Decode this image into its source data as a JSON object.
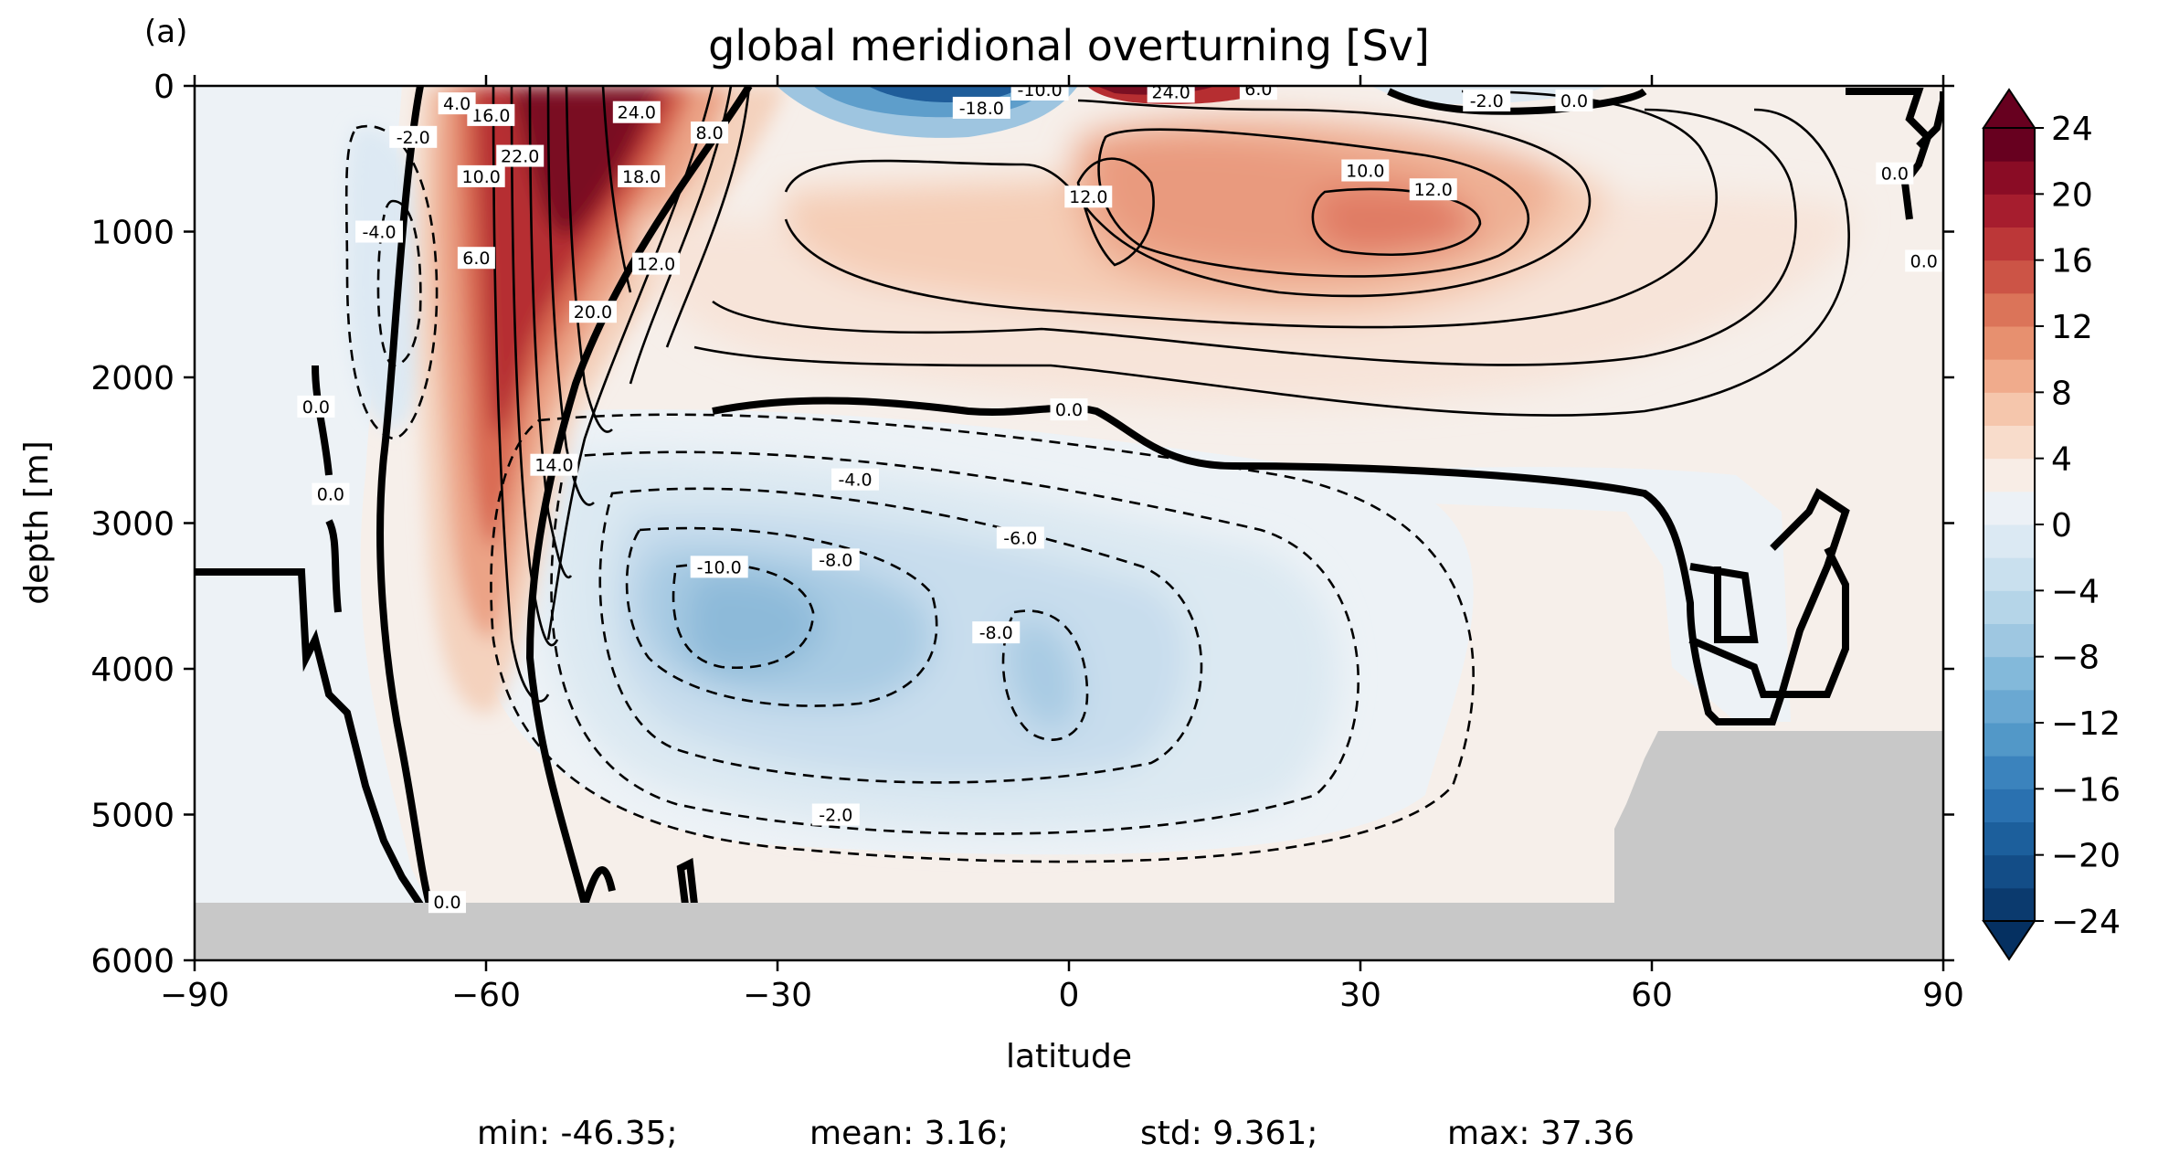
{
  "panel_label": "(a)",
  "chart_data": {
    "type": "heatmap",
    "title": "global meridional overturning [Sv]",
    "xlabel": "latitude",
    "ylabel": "depth [m]",
    "xlim": [
      -90,
      90
    ],
    "ylim": [
      6000,
      0
    ],
    "xticks": [
      -90,
      -60,
      -30,
      0,
      30,
      60,
      90
    ],
    "xtick_labels": [
      "−90",
      "−60",
      "−30",
      "0",
      "30",
      "60",
      "90"
    ],
    "yticks": [
      0,
      1000,
      2000,
      3000,
      4000,
      5000,
      6000
    ],
    "ytick_labels": [
      "0",
      "1000",
      "2000",
      "3000",
      "4000",
      "5000",
      "6000"
    ],
    "colormap": "RdBu_r",
    "colorbar": {
      "vmin": -24,
      "vmax": 24,
      "step": 2,
      "extend": "both",
      "ticks": [
        24,
        20,
        16,
        12,
        8,
        4,
        0,
        -4,
        -8,
        -12,
        -16,
        -20,
        -24
      ],
      "tick_labels": [
        "24",
        "20",
        "16",
        "12",
        "8",
        "4",
        "0",
        "−4",
        "−8",
        "−12",
        "−16",
        "−20",
        "−24"
      ]
    },
    "land_color": "#c8c8c8",
    "contour_labels": [
      {
        "text": "0.0",
        "lat": 0,
        "depth": 2220
      },
      {
        "text": "-4.0",
        "lat": -22,
        "depth": 2700
      },
      {
        "text": "-6.0",
        "lat": -5,
        "depth": 3100
      },
      {
        "text": "-8.0",
        "lat": -24,
        "depth": 3250
      },
      {
        "text": "-10.0",
        "lat": -36,
        "depth": 3300
      },
      {
        "text": "-8.0",
        "lat": -7.5,
        "depth": 3750
      },
      {
        "text": "-2.0",
        "lat": -24,
        "depth": 5000
      },
      {
        "text": "0.0",
        "lat": -77.5,
        "depth": 2200
      },
      {
        "text": "0.0",
        "lat": -76,
        "depth": 2800
      },
      {
        "text": "0.0",
        "lat": -64,
        "depth": 5600
      },
      {
        "text": "-2.0",
        "lat": -67.5,
        "depth": 350
      },
      {
        "text": "-4.0",
        "lat": -71,
        "depth": 1000
      },
      {
        "text": "14.0",
        "lat": -53,
        "depth": 2600
      },
      {
        "text": "20.0",
        "lat": -49,
        "depth": 1550
      },
      {
        "text": "12.0",
        "lat": -42.5,
        "depth": 1220
      },
      {
        "text": "18.0",
        "lat": -44,
        "depth": 620
      },
      {
        "text": "8.0",
        "lat": -37,
        "depth": 320
      },
      {
        "text": "24.0",
        "lat": -44.5,
        "depth": 180
      },
      {
        "text": "22.0",
        "lat": -56.5,
        "depth": 480
      },
      {
        "text": "10.0",
        "lat": -60.5,
        "depth": 620
      },
      {
        "text": "16.0",
        "lat": -59.5,
        "depth": 200
      },
      {
        "text": "4.0",
        "lat": -63,
        "depth": 120
      },
      {
        "text": "6.0",
        "lat": -61,
        "depth": 1180
      },
      {
        "text": "12.0",
        "lat": 2,
        "depth": 760
      },
      {
        "text": "10.0",
        "lat": 30.5,
        "depth": 580
      },
      {
        "text": "12.0",
        "lat": 37.5,
        "depth": 710
      },
      {
        "text": "-2.0",
        "lat": 43,
        "depth": 100
      },
      {
        "text": "0.0",
        "lat": 52,
        "depth": 100
      },
      {
        "text": "0.0",
        "lat": 85,
        "depth": 600
      },
      {
        "text": "0.0",
        "lat": 88,
        "depth": 1200
      },
      {
        "text": "-18.0",
        "lat": -9,
        "depth": 150
      },
      {
        "text": "-10.0",
        "lat": -3,
        "depth": 25
      },
      {
        "text": "24.0",
        "lat": 10.5,
        "depth": 40
      },
      {
        "text": "6.0",
        "lat": 19.5,
        "depth": 20
      }
    ],
    "stats": {
      "min": "min: -46.35;",
      "mean": "mean: 3.16;",
      "std": "std: 9.361;",
      "max": "max: 37.36"
    }
  }
}
